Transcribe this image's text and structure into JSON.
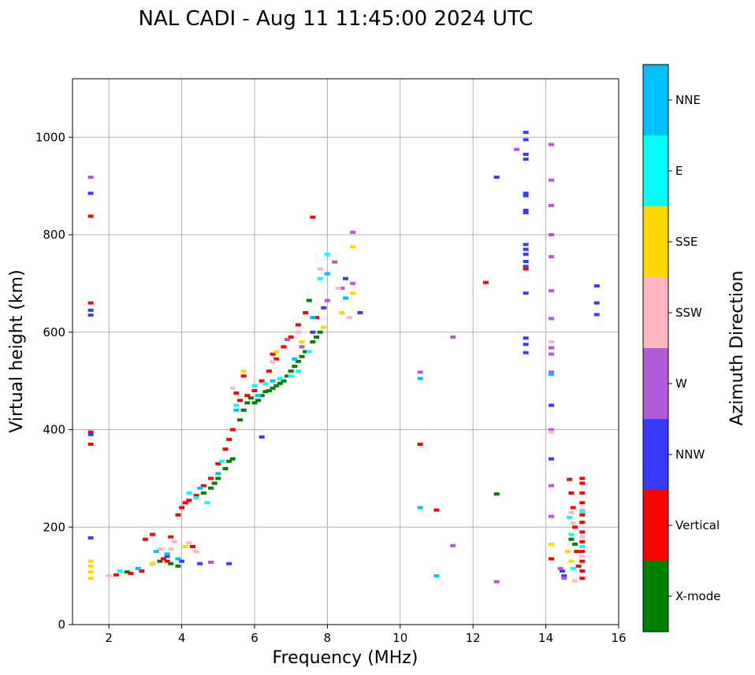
{
  "chart_data": {
    "type": "scatter",
    "title": "NAL CADI - Aug 11 11:45:00 2024 UTC",
    "xlabel": "Frequency (MHz)",
    "ylabel": "Virtual height (km)",
    "xlim": [
      1,
      16
    ],
    "ylim": [
      0,
      1120
    ],
    "xticks": [
      2,
      4,
      6,
      8,
      10,
      12,
      14,
      16
    ],
    "yticks": [
      0,
      200,
      400,
      600,
      800,
      1000
    ],
    "grid": true,
    "colorbar": {
      "label": "Azimuth Direction",
      "categories": [
        {
          "name": "X-mode",
          "color": "#008000"
        },
        {
          "name": "Vertical",
          "color": "#ff0000"
        },
        {
          "name": "NNW",
          "color": "#3a3aff"
        },
        {
          "name": "W",
          "color": "#b05ad8"
        },
        {
          "name": "SSW",
          "color": "#ffb6c1"
        },
        {
          "name": "SSE",
          "color": "#ffd700"
        },
        {
          "name": "E",
          "color": "#00ffff"
        },
        {
          "name": "NNE",
          "color": "#00bfff"
        }
      ]
    },
    "series": [
      {
        "name": "X-mode",
        "points": [
          [
            2.5,
            108
          ],
          [
            3.7,
            125
          ],
          [
            4.6,
            270
          ],
          [
            4.8,
            280
          ],
          [
            5.0,
            300
          ],
          [
            5.2,
            320
          ],
          [
            5.4,
            340
          ],
          [
            5.6,
            420
          ],
          [
            5.8,
            455
          ],
          [
            6.0,
            455
          ],
          [
            6.2,
            470
          ],
          [
            6.4,
            480
          ],
          [
            6.6,
            490
          ],
          [
            6.8,
            500
          ],
          [
            7.0,
            520
          ],
          [
            7.2,
            540
          ],
          [
            7.4,
            560
          ],
          [
            7.6,
            580
          ],
          [
            7.8,
            600
          ],
          [
            5.9,
            465
          ],
          [
            6.3,
            478
          ],
          [
            6.7,
            495
          ],
          [
            7.1,
            530
          ],
          [
            7.5,
            665
          ],
          [
            12.65,
            268
          ],
          [
            14.7,
            175
          ],
          [
            14.8,
            165
          ],
          [
            4.9,
            290
          ],
          [
            5.3,
            335
          ],
          [
            5.7,
            440
          ],
          [
            6.1,
            460
          ],
          [
            6.5,
            485
          ],
          [
            6.9,
            510
          ],
          [
            7.3,
            550
          ],
          [
            7.7,
            590
          ],
          [
            3.4,
            130
          ],
          [
            3.9,
            120
          ]
        ]
      },
      {
        "name": "Vertical",
        "points": [
          [
            1.5,
            660
          ],
          [
            1.5,
            395
          ],
          [
            1.5,
            370
          ],
          [
            1.5,
            838
          ],
          [
            2.2,
            102
          ],
          [
            2.6,
            105
          ],
          [
            2.9,
            110
          ],
          [
            3.2,
            125
          ],
          [
            3.5,
            135
          ],
          [
            3.7,
            180
          ],
          [
            3.9,
            225
          ],
          [
            4.0,
            240
          ],
          [
            4.1,
            250
          ],
          [
            4.2,
            255
          ],
          [
            4.4,
            265
          ],
          [
            4.6,
            285
          ],
          [
            4.8,
            300
          ],
          [
            5.0,
            330
          ],
          [
            5.2,
            360
          ],
          [
            5.3,
            380
          ],
          [
            5.4,
            400
          ],
          [
            5.6,
            460
          ],
          [
            5.8,
            470
          ],
          [
            6.0,
            480
          ],
          [
            6.2,
            500
          ],
          [
            6.4,
            520
          ],
          [
            6.6,
            545
          ],
          [
            6.8,
            570
          ],
          [
            7.0,
            590
          ],
          [
            7.2,
            615
          ],
          [
            7.4,
            640
          ],
          [
            7.6,
            836
          ],
          [
            7.7,
            630
          ],
          [
            5.5,
            475
          ],
          [
            5.7,
            510
          ],
          [
            6.5,
            555
          ],
          [
            3.0,
            175
          ],
          [
            3.2,
            185
          ],
          [
            3.6,
            130
          ],
          [
            4.3,
            160
          ],
          [
            10.55,
            370
          ],
          [
            11.0,
            235
          ],
          [
            12.35,
            702
          ],
          [
            14.15,
            135
          ],
          [
            14.65,
            298
          ],
          [
            14.7,
            270
          ],
          [
            14.75,
            240
          ],
          [
            14.8,
            200
          ],
          [
            14.85,
            150
          ],
          [
            14.9,
            120
          ],
          [
            15.0,
            300
          ],
          [
            15.0,
            290
          ],
          [
            15.0,
            270
          ],
          [
            15.0,
            250
          ],
          [
            15.0,
            225
          ],
          [
            15.0,
            210
          ],
          [
            15.0,
            190
          ],
          [
            15.0,
            170
          ],
          [
            15.0,
            150
          ],
          [
            15.0,
            130
          ],
          [
            15.0,
            110
          ],
          [
            15.0,
            95
          ],
          [
            13.45,
            730
          ]
        ]
      },
      {
        "name": "NNW",
        "points": [
          [
            1.5,
            885
          ],
          [
            1.5,
            645
          ],
          [
            1.5,
            635
          ],
          [
            1.5,
            390
          ],
          [
            1.5,
            178
          ],
          [
            3.6,
            140
          ],
          [
            4.0,
            130
          ],
          [
            4.5,
            125
          ],
          [
            5.3,
            125
          ],
          [
            6.2,
            385
          ],
          [
            8.5,
            710
          ],
          [
            8.9,
            640
          ],
          [
            12.65,
            918
          ],
          [
            13.45,
            1010
          ],
          [
            13.45,
            995
          ],
          [
            13.45,
            965
          ],
          [
            13.45,
            955
          ],
          [
            13.45,
            885
          ],
          [
            13.45,
            880
          ],
          [
            13.45,
            850
          ],
          [
            13.45,
            845
          ],
          [
            13.45,
            780
          ],
          [
            13.45,
            770
          ],
          [
            13.45,
            760
          ],
          [
            13.45,
            745
          ],
          [
            13.45,
            735
          ],
          [
            13.45,
            680
          ],
          [
            13.45,
            588
          ],
          [
            13.45,
            575
          ],
          [
            13.45,
            558
          ],
          [
            14.15,
            450
          ],
          [
            14.15,
            340
          ],
          [
            14.45,
            110
          ],
          [
            14.5,
            100
          ],
          [
            15.4,
            695
          ],
          [
            15.4,
            660
          ],
          [
            15.4,
            636
          ],
          [
            7.6,
            600
          ],
          [
            7.9,
            650
          ]
        ]
      },
      {
        "name": "W",
        "points": [
          [
            1.5,
            918
          ],
          [
            8.0,
            665
          ],
          [
            8.2,
            744
          ],
          [
            8.4,
            690
          ],
          [
            8.7,
            805
          ],
          [
            8.7,
            700
          ],
          [
            10.55,
            518
          ],
          [
            11.45,
            590
          ],
          [
            11.45,
            162
          ],
          [
            12.65,
            88
          ],
          [
            13.2,
            975
          ],
          [
            14.15,
            985
          ],
          [
            14.15,
            912
          ],
          [
            14.15,
            860
          ],
          [
            14.15,
            800
          ],
          [
            14.15,
            755
          ],
          [
            14.15,
            685
          ],
          [
            14.15,
            628
          ],
          [
            14.15,
            568
          ],
          [
            14.15,
            555
          ],
          [
            14.15,
            518
          ],
          [
            14.15,
            400
          ],
          [
            14.15,
            285
          ],
          [
            14.15,
            222
          ],
          [
            14.4,
            115
          ],
          [
            14.5,
            95
          ],
          [
            6.9,
            585
          ],
          [
            7.3,
            570
          ],
          [
            4.8,
            128
          ]
        ]
      },
      {
        "name": "SSW",
        "points": [
          [
            2.0,
            100
          ],
          [
            3.4,
            155
          ],
          [
            3.8,
            170
          ],
          [
            4.2,
            168
          ],
          [
            5.4,
            485
          ],
          [
            6.5,
            540
          ],
          [
            7.2,
            600
          ],
          [
            7.8,
            730
          ],
          [
            8.3,
            690
          ],
          [
            8.6,
            630
          ],
          [
            14.15,
            580
          ],
          [
            14.15,
            395
          ],
          [
            14.7,
            230
          ],
          [
            14.75,
            208
          ],
          [
            14.8,
            90
          ],
          [
            15.0,
            236
          ],
          [
            15.0,
            180
          ],
          [
            15.0,
            140
          ],
          [
            3.7,
            155
          ],
          [
            4.4,
            150
          ]
        ]
      },
      {
        "name": "SSE",
        "points": [
          [
            1.5,
            130
          ],
          [
            1.5,
            120
          ],
          [
            1.5,
            108
          ],
          [
            1.5,
            95
          ],
          [
            3.2,
            125
          ],
          [
            4.1,
            160
          ],
          [
            5.7,
            520
          ],
          [
            6.6,
            560
          ],
          [
            7.3,
            580
          ],
          [
            7.9,
            610
          ],
          [
            8.7,
            775
          ],
          [
            8.7,
            680
          ],
          [
            8.4,
            640
          ],
          [
            14.15,
            165
          ],
          [
            14.6,
            150
          ],
          [
            14.7,
            130
          ]
        ]
      },
      {
        "name": "E",
        "points": [
          [
            2.3,
            110
          ],
          [
            4.2,
            270
          ],
          [
            4.4,
            260
          ],
          [
            4.7,
            250
          ],
          [
            5.1,
            335
          ],
          [
            5.5,
            450
          ],
          [
            6.0,
            490
          ],
          [
            6.3,
            495
          ],
          [
            6.7,
            505
          ],
          [
            7.0,
            510
          ],
          [
            7.2,
            520
          ],
          [
            7.5,
            560
          ],
          [
            7.8,
            710
          ],
          [
            8.0,
            760
          ],
          [
            8.5,
            670
          ],
          [
            14.65,
            220
          ],
          [
            14.7,
            185
          ],
          [
            14.75,
            115
          ],
          [
            15.0,
            232
          ],
          [
            15.0,
            160
          ]
        ]
      },
      {
        "name": "NNE",
        "points": [
          [
            2.8,
            115
          ],
          [
            3.3,
            150
          ],
          [
            3.6,
            145
          ],
          [
            3.9,
            135
          ],
          [
            4.5,
            280
          ],
          [
            5.0,
            310
          ],
          [
            5.5,
            440
          ],
          [
            6.1,
            470
          ],
          [
            6.5,
            500
          ],
          [
            7.1,
            545
          ],
          [
            7.6,
            630
          ],
          [
            8.0,
            720
          ],
          [
            8.5,
            670
          ],
          [
            10.55,
            505
          ],
          [
            10.55,
            240
          ],
          [
            11.0,
            100
          ],
          [
            14.15,
            514
          ]
        ]
      }
    ]
  }
}
